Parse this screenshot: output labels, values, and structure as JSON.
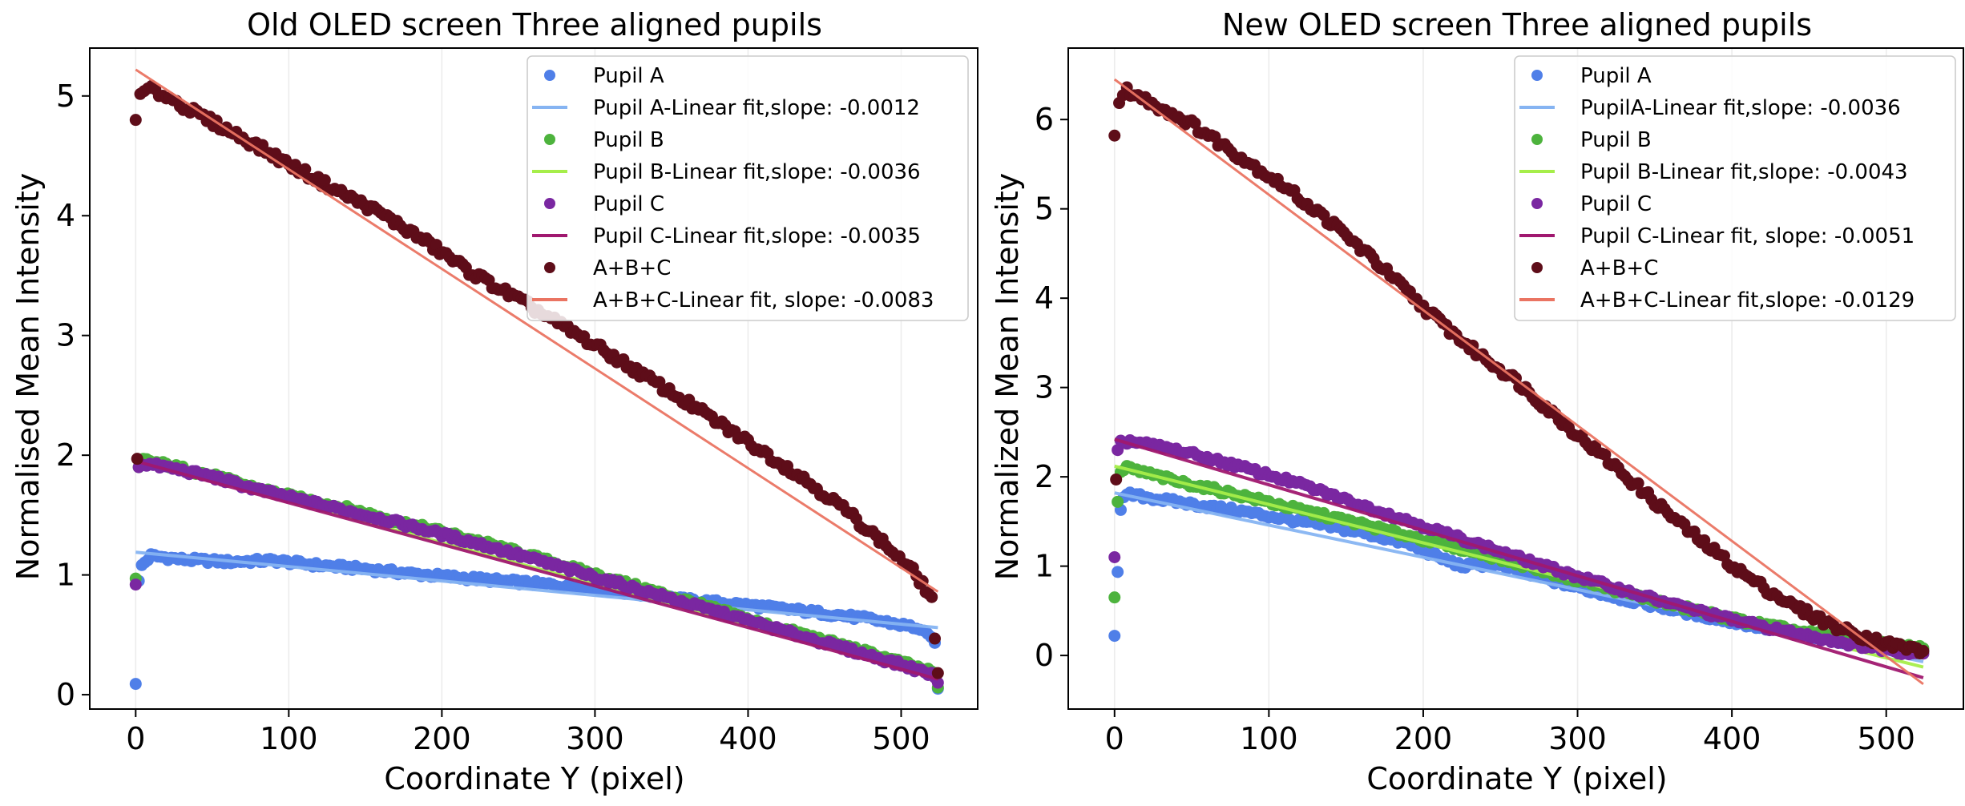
{
  "chart_data": [
    {
      "type": "scatter",
      "title": "Old OLED screen Three aligned pupils",
      "xlabel": "Coordinate Y (pixel)",
      "ylabel": "Normalised Mean Intensity",
      "xlim": [
        -30,
        550
      ],
      "ylim": [
        -0.12,
        5.4
      ],
      "xticks": [
        0,
        100,
        200,
        300,
        400,
        500
      ],
      "yticks": [
        0,
        1,
        2,
        3,
        4,
        5
      ],
      "grid": "vertical",
      "legend_position": "top-right",
      "series": [
        {
          "name": "Pupil A",
          "kind": "points",
          "color": "#4f7fe8",
          "x": [
            0,
            2,
            4,
            10,
            30,
            60,
            90,
            120,
            150,
            180,
            210,
            240,
            270,
            300,
            330,
            360,
            390,
            420,
            450,
            480,
            510,
            522,
            524
          ],
          "y": [
            0.09,
            0.95,
            1.08,
            1.16,
            1.13,
            1.11,
            1.12,
            1.08,
            1.05,
            1.01,
            0.98,
            0.95,
            0.92,
            0.89,
            0.84,
            0.79,
            0.76,
            0.72,
            0.68,
            0.63,
            0.56,
            0.45,
            0.05
          ]
        },
        {
          "name": "Pupil A-Linear fit,slope: -0.0012",
          "kind": "line",
          "color": "#86b4f2",
          "x": [
            0,
            524
          ],
          "y": [
            1.19,
            0.56
          ]
        },
        {
          "name": "Pupil B",
          "kind": "points",
          "color": "#4db33d",
          "x": [
            0,
            2,
            5,
            20,
            50,
            80,
            110,
            140,
            170,
            200,
            230,
            260,
            290,
            320,
            350,
            380,
            410,
            440,
            470,
            500,
            522,
            524
          ],
          "y": [
            0.97,
            1.9,
            1.96,
            1.92,
            1.83,
            1.72,
            1.63,
            1.55,
            1.45,
            1.36,
            1.26,
            1.15,
            1.04,
            0.93,
            0.82,
            0.71,
            0.59,
            0.49,
            0.38,
            0.27,
            0.18,
            0.06
          ]
        },
        {
          "name": "Pupil B-Linear fit,slope: -0.0036",
          "kind": "line",
          "color": "#a6ee4a",
          "x": [
            0,
            524
          ],
          "y": [
            1.96,
            0.15
          ]
        },
        {
          "name": "Pupil C",
          "kind": "points",
          "color": "#7a27a1",
          "x": [
            0,
            2,
            5,
            20,
            50,
            80,
            110,
            140,
            170,
            200,
            230,
            260,
            290,
            320,
            350,
            380,
            410,
            440,
            470,
            500,
            522,
            524
          ],
          "y": [
            0.92,
            1.9,
            1.93,
            1.9,
            1.82,
            1.71,
            1.62,
            1.53,
            1.44,
            1.34,
            1.24,
            1.13,
            1.02,
            0.91,
            0.8,
            0.69,
            0.58,
            0.47,
            0.36,
            0.25,
            0.16,
            0.1
          ]
        },
        {
          "name": "Pupil C-Linear fit,slope: -0.0035",
          "kind": "line",
          "color": "#a0186f",
          "x": [
            0,
            524
          ],
          "y": [
            1.95,
            0.13
          ]
        },
        {
          "name": "A+B+C",
          "kind": "points",
          "color": "#5e0d19",
          "x": [
            0,
            1,
            3,
            8,
            20,
            40,
            70,
            100,
            130,
            160,
            190,
            220,
            250,
            280,
            310,
            340,
            370,
            400,
            430,
            460,
            490,
            510,
            520,
            524
          ],
          "y": [
            4.8,
            1.97,
            5.0,
            5.06,
            5.0,
            4.85,
            4.65,
            4.43,
            4.22,
            4.02,
            3.78,
            3.52,
            3.3,
            3.07,
            2.84,
            2.6,
            2.36,
            2.11,
            1.86,
            1.58,
            1.25,
            1.0,
            0.8,
            0.18
          ]
        },
        {
          "name": "A+B+C-Linear fit, slope: -0.0083",
          "kind": "line",
          "color": "#ea7462",
          "x": [
            0,
            524
          ],
          "y": [
            5.22,
            0.86
          ]
        }
      ]
    },
    {
      "type": "scatter",
      "title": "New OLED screen Three aligned pupils",
      "xlabel": "Coordinate Y (pixel)",
      "ylabel": "Normalized Mean Intensity",
      "xlim": [
        -30,
        550
      ],
      "ylim": [
        -0.6,
        6.8
      ],
      "xticks": [
        0,
        100,
        200,
        300,
        400,
        500
      ],
      "yticks": [
        0,
        1,
        2,
        3,
        4,
        5,
        6
      ],
      "grid": "vertical",
      "legend_position": "top-right",
      "series": [
        {
          "name": "Pupil A",
          "kind": "points",
          "color": "#4f7fe8",
          "x": [
            0,
            4,
            6,
            10,
            40,
            80,
            120,
            160,
            190,
            210,
            225,
            245,
            270,
            300,
            330,
            360,
            390,
            420,
            450,
            480,
            510,
            524
          ],
          "y": [
            0.22,
            1.65,
            1.76,
            1.8,
            1.72,
            1.62,
            1.5,
            1.38,
            1.25,
            1.1,
            1.0,
            1.02,
            0.9,
            0.76,
            0.63,
            0.52,
            0.41,
            0.31,
            0.22,
            0.14,
            0.08,
            0.05
          ]
        },
        {
          "name": "PupilA-Linear fit,slope: -0.0036",
          "kind": "line",
          "color": "#86b4f2",
          "x": [
            0,
            524
          ],
          "y": [
            1.82,
            -0.07
          ]
        },
        {
          "name": "Pupil B",
          "kind": "points",
          "color": "#4db33d",
          "x": [
            0,
            2,
            4,
            8,
            40,
            80,
            120,
            160,
            200,
            240,
            280,
            320,
            360,
            400,
            440,
            480,
            510,
            524
          ],
          "y": [
            0.65,
            1.72,
            2.05,
            2.1,
            1.95,
            1.8,
            1.63,
            1.47,
            1.3,
            1.13,
            0.94,
            0.75,
            0.57,
            0.41,
            0.28,
            0.17,
            0.1,
            0.08
          ]
        },
        {
          "name": "Pupil B-Linear fit,slope: -0.0043",
          "kind": "line",
          "color": "#a6ee4a",
          "x": [
            0,
            524
          ],
          "y": [
            2.12,
            -0.13
          ]
        },
        {
          "name": "Pupil C",
          "kind": "points",
          "color": "#7a27a1",
          "x": [
            0,
            2,
            4,
            10,
            40,
            80,
            120,
            160,
            200,
            240,
            280,
            320,
            360,
            400,
            440,
            480,
            510,
            524
          ],
          "y": [
            1.1,
            2.3,
            2.38,
            2.4,
            2.3,
            2.12,
            1.92,
            1.68,
            1.45,
            1.22,
            0.99,
            0.78,
            0.58,
            0.4,
            0.25,
            0.12,
            0.04,
            0.02
          ]
        },
        {
          "name": "Pupil C-Linear fit, slope: -0.0051",
          "kind": "line",
          "color": "#a0186f",
          "x": [
            0,
            524
          ],
          "y": [
            2.42,
            -0.25
          ]
        },
        {
          "name": "A+B+C",
          "kind": "points",
          "color": "#5e0d19",
          "x": [
            0,
            1,
            3,
            8,
            20,
            50,
            80,
            110,
            140,
            170,
            200,
            230,
            260,
            290,
            320,
            350,
            380,
            410,
            440,
            470,
            500,
            524
          ],
          "y": [
            5.82,
            1.97,
            6.18,
            6.32,
            6.22,
            5.95,
            5.6,
            5.25,
            4.85,
            4.4,
            3.9,
            3.45,
            3.08,
            2.62,
            2.18,
            1.72,
            1.28,
            0.88,
            0.55,
            0.3,
            0.13,
            0.05
          ]
        },
        {
          "name": "A+B+C-Linear fit,slope: -0.0129",
          "kind": "line",
          "color": "#ea7462",
          "x": [
            0,
            524
          ],
          "y": [
            6.45,
            -0.32
          ]
        }
      ]
    }
  ]
}
